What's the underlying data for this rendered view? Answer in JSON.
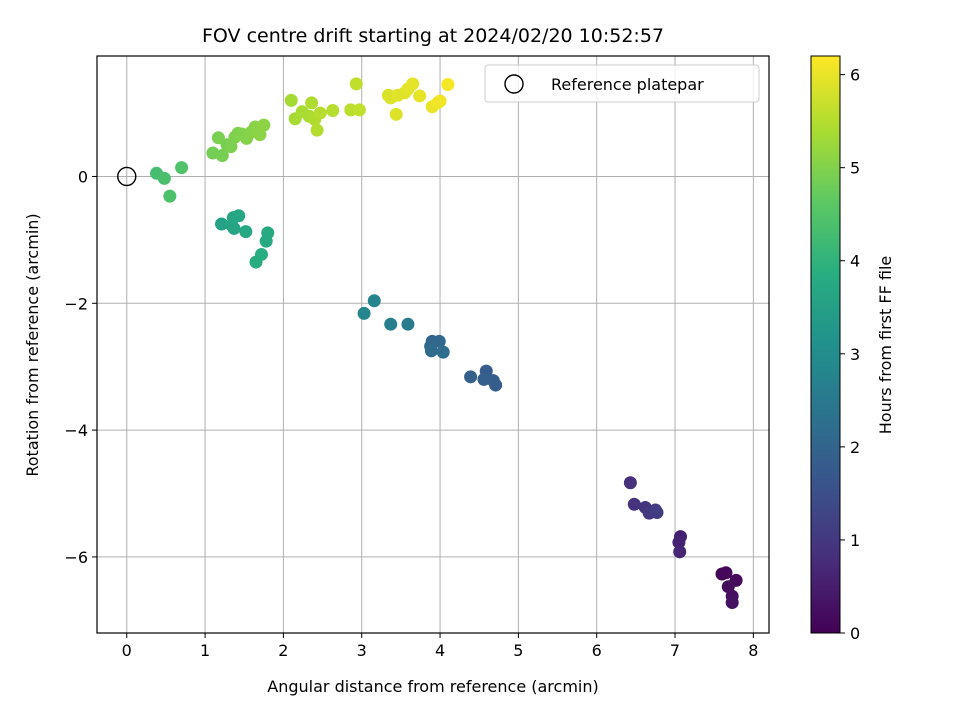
{
  "chart_data": {
    "type": "scatter",
    "title": "FOV centre drift starting at 2024/02/20 10:52:57",
    "xlabel": "Angular distance from reference (arcmin)",
    "ylabel": "Rotation from reference (arcmin)",
    "xlim": [
      -0.38,
      8.2
    ],
    "ylim": [
      -7.2,
      1.9
    ],
    "xticks": [
      0,
      1,
      2,
      3,
      4,
      5,
      6,
      7,
      8
    ],
    "xtick_labels": [
      "0",
      "1",
      "2",
      "3",
      "4",
      "5",
      "6",
      "7",
      "8"
    ],
    "yticks": [
      -6,
      -4,
      -2,
      0
    ],
    "ytick_labels": [
      "−6",
      "−4",
      "−2",
      "0"
    ],
    "grid": true,
    "legend": {
      "placement": "top-right",
      "entries": [
        "Reference platepar"
      ]
    },
    "reference_point": {
      "x": 0,
      "y": 0,
      "label": "Reference platepar"
    },
    "colorbar": {
      "label": "Hours from first FF file",
      "range": [
        0,
        6.2
      ],
      "ticks": [
        0,
        1,
        2,
        3,
        4,
        5,
        6
      ],
      "tick_labels": [
        "0",
        "1",
        "2",
        "3",
        "4",
        "5",
        "6"
      ],
      "colormap": "viridis"
    },
    "points": [
      {
        "x": 7.6,
        "y": -6.27,
        "t": 0.05
      },
      {
        "x": 7.65,
        "y": -6.25,
        "t": 0.1
      },
      {
        "x": 7.78,
        "y": -6.37,
        "t": 0.15
      },
      {
        "x": 7.68,
        "y": -6.47,
        "t": 0.2
      },
      {
        "x": 7.73,
        "y": -6.62,
        "t": 0.25
      },
      {
        "x": 7.73,
        "y": -6.72,
        "t": 0.3
      },
      {
        "x": 7.07,
        "y": -5.68,
        "t": 0.55
      },
      {
        "x": 7.05,
        "y": -5.77,
        "t": 0.6
      },
      {
        "x": 7.06,
        "y": -5.92,
        "t": 0.65
      },
      {
        "x": 6.43,
        "y": -4.83,
        "t": 0.85
      },
      {
        "x": 6.48,
        "y": -5.17,
        "t": 0.9
      },
      {
        "x": 6.62,
        "y": -5.22,
        "t": 0.95
      },
      {
        "x": 6.67,
        "y": -5.31,
        "t": 1.0
      },
      {
        "x": 6.75,
        "y": -5.26,
        "t": 1.05
      },
      {
        "x": 6.77,
        "y": -5.3,
        "t": 1.1
      },
      {
        "x": 4.59,
        "y": -3.07,
        "t": 1.8
      },
      {
        "x": 4.68,
        "y": -3.22,
        "t": 1.82
      },
      {
        "x": 4.71,
        "y": -3.29,
        "t": 1.84
      },
      {
        "x": 4.56,
        "y": -3.2,
        "t": 1.86
      },
      {
        "x": 4.39,
        "y": -3.16,
        "t": 1.88
      },
      {
        "x": 3.9,
        "y": -2.6,
        "t": 2.0
      },
      {
        "x": 3.99,
        "y": -2.6,
        "t": 2.05
      },
      {
        "x": 3.88,
        "y": -2.68,
        "t": 2.1
      },
      {
        "x": 3.89,
        "y": -2.75,
        "t": 2.15
      },
      {
        "x": 4.04,
        "y": -2.77,
        "t": 2.2
      },
      {
        "x": 3.59,
        "y": -2.33,
        "t": 2.55
      },
      {
        "x": 3.37,
        "y": -2.33,
        "t": 2.65
      },
      {
        "x": 3.16,
        "y": -1.96,
        "t": 2.8
      },
      {
        "x": 3.03,
        "y": -2.16,
        "t": 2.85
      },
      {
        "x": 1.21,
        "y": -0.75,
        "t": 3.55
      },
      {
        "x": 1.34,
        "y": -0.77,
        "t": 3.6
      },
      {
        "x": 1.37,
        "y": -0.82,
        "t": 3.62
      },
      {
        "x": 1.36,
        "y": -0.65,
        "t": 3.65
      },
      {
        "x": 1.43,
        "y": -0.62,
        "t": 3.7
      },
      {
        "x": 1.52,
        "y": -0.87,
        "t": 3.72
      },
      {
        "x": 1.8,
        "y": -0.89,
        "t": 3.75
      },
      {
        "x": 1.78,
        "y": -1.02,
        "t": 3.78
      },
      {
        "x": 1.72,
        "y": -1.23,
        "t": 3.82
      },
      {
        "x": 1.65,
        "y": -1.35,
        "t": 3.85
      },
      {
        "x": 0.38,
        "y": 0.05,
        "t": 4.3
      },
      {
        "x": 0.48,
        "y": -0.03,
        "t": 4.35
      },
      {
        "x": 0.55,
        "y": -0.31,
        "t": 4.4
      },
      {
        "x": 0.7,
        "y": 0.14,
        "t": 4.45
      },
      {
        "x": 1.1,
        "y": 0.37,
        "t": 4.85
      },
      {
        "x": 1.22,
        "y": 0.33,
        "t": 4.88
      },
      {
        "x": 1.28,
        "y": 0.5,
        "t": 4.9
      },
      {
        "x": 1.17,
        "y": 0.61,
        "t": 4.92
      },
      {
        "x": 1.33,
        "y": 0.47,
        "t": 4.94
      },
      {
        "x": 1.38,
        "y": 0.62,
        "t": 4.96
      },
      {
        "x": 1.42,
        "y": 0.68,
        "t": 4.98
      },
      {
        "x": 1.47,
        "y": 0.67,
        "t": 5.0
      },
      {
        "x": 1.53,
        "y": 0.6,
        "t": 5.02
      },
      {
        "x": 1.59,
        "y": 0.7,
        "t": 5.04
      },
      {
        "x": 1.64,
        "y": 0.78,
        "t": 5.06
      },
      {
        "x": 1.7,
        "y": 0.66,
        "t": 5.08
      },
      {
        "x": 1.75,
        "y": 0.81,
        "t": 5.1
      },
      {
        "x": 2.1,
        "y": 1.2,
        "t": 5.35
      },
      {
        "x": 2.15,
        "y": 0.91,
        "t": 5.37
      },
      {
        "x": 2.24,
        "y": 1.02,
        "t": 5.39
      },
      {
        "x": 2.33,
        "y": 0.95,
        "t": 5.41
      },
      {
        "x": 2.36,
        "y": 1.16,
        "t": 5.43
      },
      {
        "x": 2.4,
        "y": 0.9,
        "t": 5.45
      },
      {
        "x": 2.43,
        "y": 0.73,
        "t": 5.47
      },
      {
        "x": 2.47,
        "y": 1.0,
        "t": 5.49
      },
      {
        "x": 2.63,
        "y": 1.04,
        "t": 5.51
      },
      {
        "x": 2.86,
        "y": 1.05,
        "t": 5.55
      },
      {
        "x": 2.93,
        "y": 1.46,
        "t": 5.6
      },
      {
        "x": 2.97,
        "y": 1.05,
        "t": 5.62
      },
      {
        "x": 3.34,
        "y": 1.28,
        "t": 5.85
      },
      {
        "x": 3.37,
        "y": 1.24,
        "t": 5.87
      },
      {
        "x": 3.44,
        "y": 0.98,
        "t": 5.89
      },
      {
        "x": 3.46,
        "y": 1.28,
        "t": 5.91
      },
      {
        "x": 3.55,
        "y": 1.32,
        "t": 5.93
      },
      {
        "x": 3.59,
        "y": 1.38,
        "t": 5.95
      },
      {
        "x": 3.65,
        "y": 1.46,
        "t": 5.97
      },
      {
        "x": 3.74,
        "y": 1.27,
        "t": 5.99
      },
      {
        "x": 3.9,
        "y": 1.1,
        "t": 6.02
      },
      {
        "x": 3.97,
        "y": 1.16,
        "t": 6.05
      },
      {
        "x": 4.0,
        "y": 1.19,
        "t": 6.08
      },
      {
        "x": 4.1,
        "y": 1.45,
        "t": 6.12
      }
    ]
  }
}
